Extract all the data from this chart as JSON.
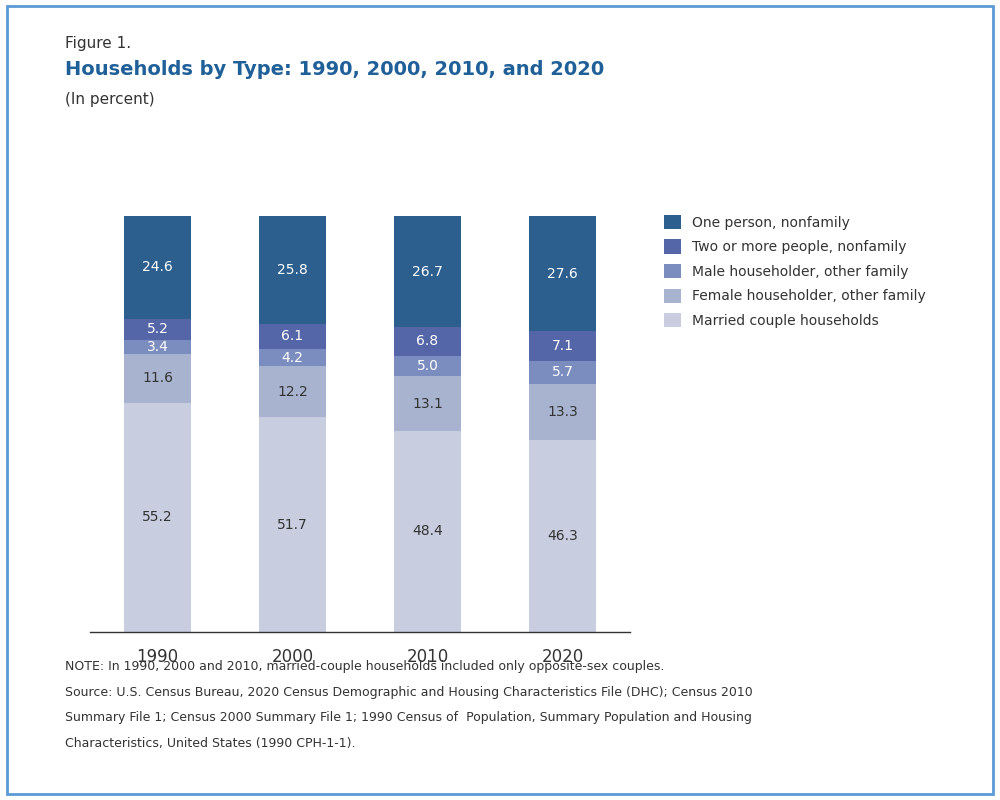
{
  "figure_label": "Figure 1.",
  "title": "Households by Type: 1990, 2000, 2010, and 2020",
  "subtitle": "(In percent)",
  "title_color": "#1F6099",
  "figure_label_color": "#333333",
  "years": [
    "1990",
    "2000",
    "2010",
    "2020"
  ],
  "categories": [
    "Married couple households",
    "Female householder, other family",
    "Male householder, other family",
    "Two or more people, nonfamily",
    "One person, nonfamily"
  ],
  "colors": [
    "#C8CEDF",
    "#A8B4CF",
    "#7B8DBF",
    "#5466A8",
    "#2D5F8E"
  ],
  "text_colors": [
    "#333333",
    "#333333",
    "#ffffff",
    "#ffffff",
    "#ffffff"
  ],
  "values": {
    "1990": [
      55.2,
      11.6,
      3.4,
      5.2,
      24.6
    ],
    "2000": [
      51.7,
      12.2,
      4.2,
      6.1,
      25.8
    ],
    "2010": [
      48.4,
      13.1,
      5.0,
      6.8,
      26.7
    ],
    "2020": [
      46.3,
      13.3,
      5.7,
      7.1,
      27.6
    ]
  },
  "legend_labels": [
    "One person, nonfamily",
    "Two or more people, nonfamily",
    "Male householder, other family",
    "Female householder, other family",
    "Married couple households"
  ],
  "legend_colors": [
    "#2D5F8E",
    "#5466A8",
    "#7B8DBF",
    "#A8B4CF",
    "#C8CEDF"
  ],
  "note_line1": "NOTE: In 1990, 2000 and 2010, married-couple households included only opposite-sex couples.",
  "note_line2": "Source: U.S. Census Bureau, 2020 Census Demographic and Housing Characteristics File (DHC); Census 2010",
  "note_line3": "Summary File 1; Census 2000 Summary File 1; 1990 Census of  Population, Summary Population and Housing",
  "note_line4": "Characteristics, United States (1990 CPH-1-1).",
  "bar_width": 0.5,
  "background_color": "#FFFFFF",
  "border_color": "#5B9BD5"
}
